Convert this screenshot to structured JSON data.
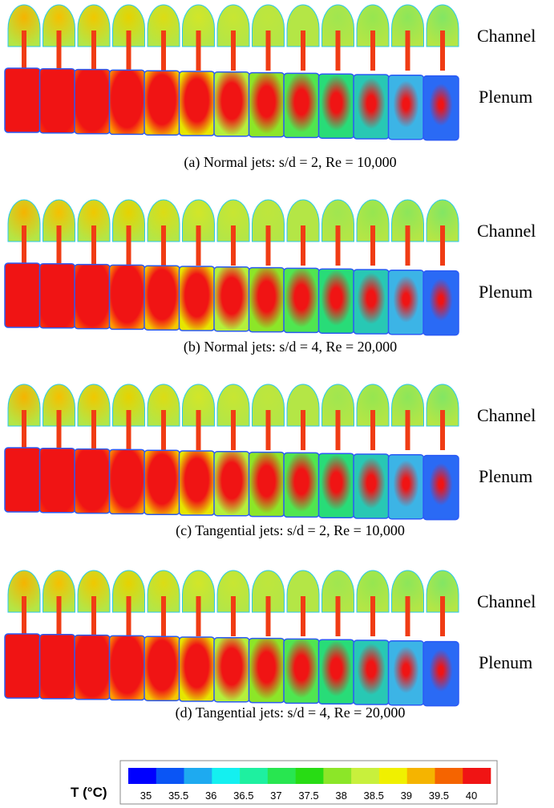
{
  "panels": [
    {
      "caption": "(a) Normal jets: s/d = 2, Re = 10,000",
      "labels": [
        "Channel",
        "Plenum"
      ]
    },
    {
      "caption": "(b) Normal jets: s/d = 4, Re = 20,000",
      "labels": [
        "Channel",
        "Plenum"
      ]
    },
    {
      "caption": "(c) Tangential jets: s/d = 2, Re = 10,000",
      "labels": [
        "Channel",
        "Plenum"
      ]
    },
    {
      "caption": "(d) Tangential jets: s/d = 4, Re = 20,000",
      "labels": [
        "Channel",
        "Plenum"
      ]
    }
  ],
  "colorbar": {
    "title": "T (°C)",
    "ticks": [
      35,
      35.5,
      36,
      36.5,
      37,
      37.5,
      38,
      38.5,
      39,
      39.5,
      40
    ],
    "colors": [
      "#0000ff",
      "#0a55f5",
      "#1eaaf0",
      "#14f0f0",
      "#1ef0a0",
      "#28e650",
      "#28dc14",
      "#8ce628",
      "#c8f03c",
      "#f0f000",
      "#f5b400",
      "#f56400",
      "#f01414"
    ]
  }
}
